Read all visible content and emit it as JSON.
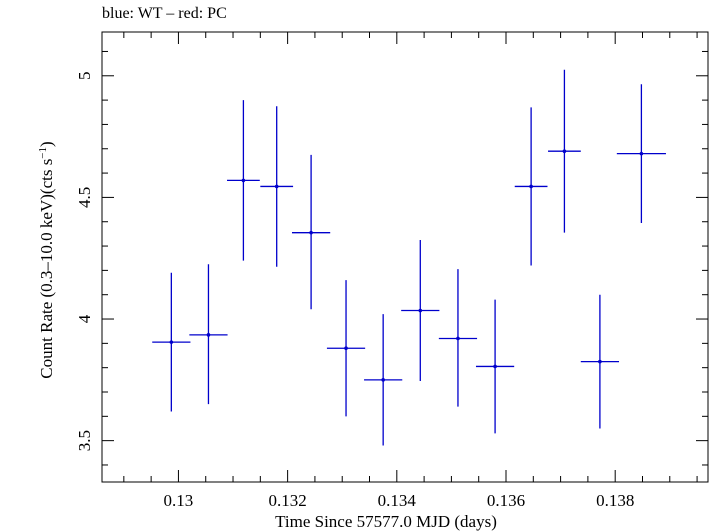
{
  "chart_data": {
    "type": "scatter",
    "title": "blue: WT – red: PC",
    "xlabel": "Time Since 57577.0 MJD (days)",
    "ylabel_main": "Count Rate (0.3–10.0 keV)(cts s",
    "ylabel_sup": "−1",
    "ylabel_end": ")",
    "xlim": [
      0.1286,
      0.1397
    ],
    "ylim": [
      3.33,
      5.18
    ],
    "xticks": [
      0.13,
      0.132,
      0.134,
      0.136,
      0.138
    ],
    "xtick_labels": [
      "0.13",
      "0.132",
      "0.134",
      "0.136",
      "0.138"
    ],
    "x_minor_step": 0.0005,
    "yticks": [
      3.5,
      4,
      4.5,
      5
    ],
    "ytick_labels": [
      "3.5",
      "4",
      "4.5",
      "5"
    ],
    "y_minor_step": 0.1,
    "grid": false,
    "series": [
      {
        "name": "WT",
        "color": "#0000cc",
        "points": [
          {
            "x": 0.12987,
            "y": 3.905,
            "xerr": 0.00035,
            "yerr_lo": 0.285,
            "yerr_hi": 0.285
          },
          {
            "x": 0.13055,
            "y": 3.935,
            "xerr": 0.00035,
            "yerr_lo": 0.285,
            "yerr_hi": 0.29
          },
          {
            "x": 0.13119,
            "y": 4.57,
            "xerr": 0.0003,
            "yerr_lo": 0.33,
            "yerr_hi": 0.33
          },
          {
            "x": 0.1318,
            "y": 4.545,
            "xerr": 0.0003,
            "yerr_lo": 0.33,
            "yerr_hi": 0.33
          },
          {
            "x": 0.13243,
            "y": 4.355,
            "xerr": 0.00035,
            "yerr_lo": 0.315,
            "yerr_hi": 0.32
          },
          {
            "x": 0.13307,
            "y": 3.88,
            "xerr": 0.00035,
            "yerr_lo": 0.28,
            "yerr_hi": 0.28
          },
          {
            "x": 0.13375,
            "y": 3.75,
            "xerr": 0.00035,
            "yerr_lo": 0.27,
            "yerr_hi": 0.27
          },
          {
            "x": 0.13443,
            "y": 4.035,
            "xerr": 0.00035,
            "yerr_lo": 0.29,
            "yerr_hi": 0.29
          },
          {
            "x": 0.13512,
            "y": 3.92,
            "xerr": 0.00035,
            "yerr_lo": 0.28,
            "yerr_hi": 0.285
          },
          {
            "x": 0.1358,
            "y": 3.805,
            "xerr": 0.00035,
            "yerr_lo": 0.275,
            "yerr_hi": 0.275
          },
          {
            "x": 0.13646,
            "y": 4.545,
            "xerr": 0.0003,
            "yerr_lo": 0.325,
            "yerr_hi": 0.325
          },
          {
            "x": 0.13707,
            "y": 4.69,
            "xerr": 0.0003,
            "yerr_lo": 0.335,
            "yerr_hi": 0.335
          },
          {
            "x": 0.13772,
            "y": 3.825,
            "xerr": 0.00035,
            "yerr_lo": 0.275,
            "yerr_hi": 0.275
          },
          {
            "x": 0.13848,
            "y": 4.68,
            "xerr": 0.00045,
            "yerr_lo": 0.285,
            "yerr_hi": 0.285
          }
        ]
      }
    ]
  }
}
